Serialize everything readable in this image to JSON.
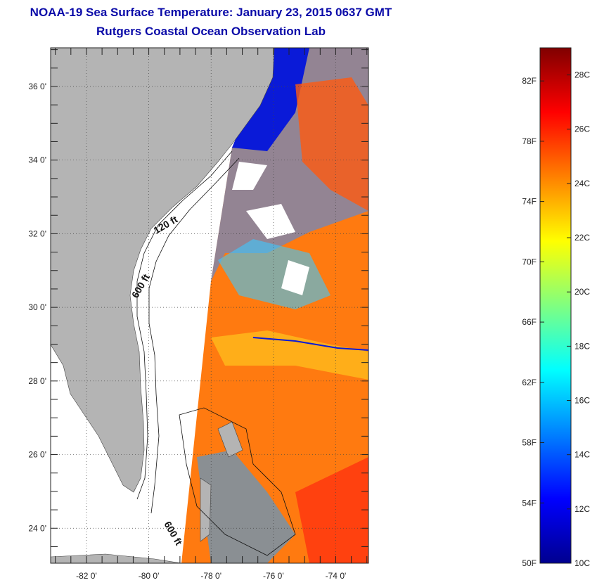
{
  "title": "NOAA-19 Sea Surface Temperature:  January 23, 2015 0637 GMT",
  "subtitle": "Rutgers Coastal Ocean Observation Lab",
  "map": {
    "lat_labels": [
      "36 0'",
      "34 0'",
      "32 0'",
      "30 0'",
      "28 0'",
      "26 0'",
      "24 0'"
    ],
    "lat_values": [
      36,
      34,
      32,
      30,
      28,
      26,
      24
    ],
    "lon_labels": [
      "-82 0'",
      "-80 0'",
      "-78 0'",
      "-76 0'",
      "-74 0'"
    ],
    "lon_values": [
      -82,
      -80,
      -78,
      -76,
      -74
    ],
    "contour_labels": [
      "120 ft",
      "600 ft",
      "600 ft"
    ],
    "land_color": "#b4b4b4",
    "water_nodata_color": "#ffffff"
  },
  "colorbar": {
    "fahrenheit_labels": [
      "82F",
      "78F",
      "74F",
      "70F",
      "66F",
      "62F",
      "58F",
      "54F",
      "50F"
    ],
    "celsius_labels": [
      "28C",
      "26C",
      "24C",
      "22C",
      "20C",
      "18C",
      "16C",
      "14C",
      "12C",
      "10C"
    ],
    "min_c": 10,
    "max_c": 29,
    "colors": [
      "#00008f",
      "#0000ff",
      "#0080ff",
      "#00ffff",
      "#80ff80",
      "#ffff00",
      "#ff8000",
      "#ff0000",
      "#800000"
    ]
  }
}
